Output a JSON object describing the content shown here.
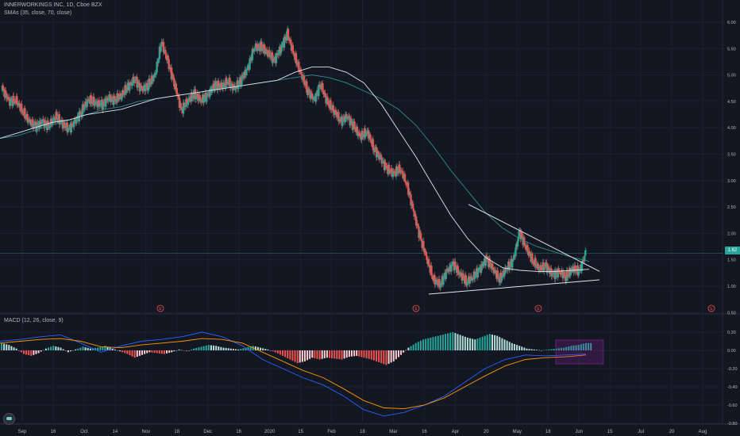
{
  "header": {
    "title": "INNERWORKINGS INC, 1D, Cboe BZX",
    "indicator": "SMAs (35, close, 70, close)"
  },
  "macd": {
    "label": "MACD (12, 26, close, 9)"
  },
  "last_price_label": "1.62",
  "event_marker": "E",
  "colors": {
    "background": "#131722",
    "up": "#26a69a",
    "down": "#ef5350",
    "sma35": "#e0e3eb",
    "sma70": "#2f8f8a",
    "macd_line": "#2962ff",
    "signal_line": "#ff9800",
    "highlight": "#9c27b0"
  },
  "chart_data": [
    {
      "type": "candlestick",
      "title": "INNERWORKINGS INC, 1D, Cboe BZX",
      "x_tick_labels": [
        "Sep",
        "16",
        "Oct",
        "14",
        "Nov",
        "18",
        "Dec",
        "16",
        "2020",
        "15",
        "Feb",
        "18",
        "Mar",
        "16",
        "Apr",
        "20",
        "May",
        "18",
        "Jun",
        "15",
        "Jul",
        "20",
        "Aug"
      ],
      "y_tick_labels": [
        "6.00",
        "5.50",
        "5.00",
        "4.50",
        "4.00",
        "3.50",
        "3.00",
        "2.50",
        "2.00",
        "1.50",
        "1.00",
        "0.50"
      ],
      "ylim": [
        0.5,
        6.0
      ],
      "last_price": 1.62,
      "price_path": [
        [
          4.7,
          4.8
        ],
        [
          4.45,
          4.55
        ],
        [
          4.5,
          4.55
        ],
        [
          4.3,
          4.35
        ],
        [
          4.1,
          4.15
        ],
        [
          4.0,
          4.05
        ],
        [
          4.1,
          4.15
        ],
        [
          4.0,
          4.05
        ],
        [
          4.2,
          4.25
        ],
        [
          4.05,
          4.1
        ],
        [
          3.95,
          4.0
        ],
        [
          4.1,
          4.15
        ],
        [
          4.3,
          4.35
        ],
        [
          4.5,
          4.55
        ],
        [
          4.45,
          4.5
        ],
        [
          4.4,
          4.45
        ],
        [
          4.55,
          4.6
        ],
        [
          4.5,
          4.55
        ],
        [
          4.6,
          4.65
        ],
        [
          4.75,
          4.8
        ],
        [
          4.9,
          4.95
        ],
        [
          4.7,
          4.75
        ],
        [
          4.8,
          4.85
        ],
        [
          4.95,
          5.0
        ],
        [
          5.6,
          5.65
        ],
        [
          5.2,
          5.25
        ],
        [
          4.8,
          4.85
        ],
        [
          4.3,
          4.35
        ],
        [
          4.5,
          4.55
        ],
        [
          4.6,
          4.65
        ],
        [
          4.5,
          4.55
        ],
        [
          4.6,
          4.65
        ],
        [
          4.8,
          4.85
        ],
        [
          4.75,
          4.8
        ],
        [
          4.85,
          4.9
        ],
        [
          4.7,
          4.75
        ],
        [
          4.9,
          4.95
        ],
        [
          5.1,
          5.15
        ],
        [
          5.5,
          5.55
        ],
        [
          5.5,
          5.55
        ],
        [
          5.4,
          5.45
        ],
        [
          5.25,
          5.3
        ],
        [
          5.5,
          5.55
        ],
        [
          5.75,
          5.8
        ],
        [
          5.35,
          5.4
        ],
        [
          5.0,
          5.05
        ],
        [
          4.7,
          4.75
        ],
        [
          4.5,
          4.55
        ],
        [
          4.8,
          4.85
        ],
        [
          4.45,
          4.5
        ],
        [
          4.3,
          4.35
        ],
        [
          4.1,
          4.15
        ],
        [
          4.2,
          4.25
        ],
        [
          4.0,
          4.05
        ],
        [
          3.8,
          3.85
        ],
        [
          3.9,
          3.95
        ],
        [
          3.6,
          3.65
        ],
        [
          3.4,
          3.45
        ],
        [
          3.2,
          3.25
        ],
        [
          3.1,
          3.15
        ],
        [
          3.2,
          3.25
        ],
        [
          2.9,
          2.95
        ],
        [
          2.4,
          2.45
        ],
        [
          1.9,
          1.95
        ],
        [
          1.5,
          1.55
        ],
        [
          1.1,
          1.15
        ],
        [
          1.0,
          1.05
        ],
        [
          1.25,
          1.3
        ],
        [
          1.4,
          1.45
        ],
        [
          1.2,
          1.25
        ],
        [
          1.05,
          1.1
        ],
        [
          1.15,
          1.2
        ],
        [
          1.3,
          1.35
        ],
        [
          1.5,
          1.55
        ],
        [
          1.3,
          1.35
        ],
        [
          1.1,
          1.15
        ],
        [
          1.3,
          1.35
        ],
        [
          1.45,
          1.5
        ],
        [
          2.0,
          2.05
        ],
        [
          1.7,
          1.75
        ],
        [
          1.45,
          1.5
        ],
        [
          1.3,
          1.35
        ],
        [
          1.35,
          1.4
        ],
        [
          1.2,
          1.25
        ],
        [
          1.25,
          1.3
        ],
        [
          1.15,
          1.2
        ],
        [
          1.3,
          1.35
        ],
        [
          1.25,
          1.3
        ],
        [
          1.62,
          1.65
        ]
      ],
      "sma35": [
        3.8,
        3.9,
        4.0,
        4.1,
        4.15,
        4.25,
        4.3,
        4.35,
        4.45,
        4.55,
        4.6,
        4.65,
        4.7,
        4.75,
        4.8,
        4.85,
        4.9,
        5.05,
        5.15,
        5.15,
        5.05,
        4.85,
        4.45,
        3.95,
        3.45,
        2.9,
        2.35,
        1.9,
        1.55,
        1.35,
        1.3,
        1.28,
        1.28,
        1.3,
        1.32
      ],
      "sma70": [
        3.8,
        3.85,
        3.95,
        4.05,
        4.15,
        4.25,
        4.35,
        4.4,
        4.5,
        4.55,
        4.6,
        4.65,
        4.7,
        4.75,
        4.8,
        4.85,
        4.9,
        4.95,
        5.0,
        4.95,
        4.85,
        4.7,
        4.55,
        4.35,
        4.05,
        3.65,
        3.2,
        2.8,
        2.4,
        2.1,
        1.9,
        1.75,
        1.65,
        1.55,
        1.47
      ],
      "trendlines": [
        {
          "from": [
            "Apr",
            2.55
          ],
          "to": [
            "Jun",
            1.28
          ]
        },
        {
          "from": [
            "Mar",
            0.85
          ],
          "to": [
            "Jun",
            1.12
          ]
        }
      ],
      "earnings_markers": [
        "Nov",
        "Mar",
        "May",
        "Aug"
      ]
    },
    {
      "type": "macd",
      "title": "MACD (12, 26, close, 9)",
      "y_tick_labels": [
        "0.20",
        "0.00",
        "-0.20",
        "-0.40",
        "-0.60",
        "-0.80"
      ],
      "ylim": [
        -0.85,
        0.25
      ],
      "histogram": [
        0.08,
        0.06,
        0.02,
        -0.04,
        -0.06,
        -0.03,
        0.02,
        0.05,
        0.03,
        -0.02,
        0.01,
        0.04,
        0.02,
        0.03,
        0.05,
        0.02,
        -0.01,
        -0.04,
        -0.08,
        -0.05,
        -0.02,
        -0.03,
        -0.04,
        -0.02,
        0.01,
        -0.01,
        0.02,
        0.04,
        0.06,
        0.05,
        0.03,
        0.02,
        0.01,
        0.03,
        0.05,
        0.03,
        0.01,
        -0.02,
        -0.06,
        -0.1,
        -0.14,
        -0.12,
        -0.08,
        -0.1,
        -0.08,
        -0.09,
        -0.1,
        -0.07,
        -0.06,
        -0.08,
        -0.1,
        -0.13,
        -0.16,
        -0.12,
        -0.05,
        0.03,
        0.08,
        0.12,
        0.14,
        0.16,
        0.18,
        0.2,
        0.17,
        0.14,
        0.12,
        0.15,
        0.18,
        0.16,
        0.12,
        0.08,
        0.05,
        0.02,
        0.01,
        0.0,
        0.01,
        0.02,
        0.03,
        0.05,
        0.06,
        0.08
      ],
      "macd_line": [
        0.1,
        0.12,
        0.15,
        0.17,
        0.08,
        -0.02,
        0.05,
        0.1,
        0.12,
        0.15,
        0.2,
        0.15,
        0.05,
        -0.1,
        -0.2,
        -0.3,
        -0.38,
        -0.5,
        -0.65,
        -0.72,
        -0.68,
        -0.6,
        -0.5,
        -0.35,
        -0.2,
        -0.1,
        -0.05,
        -0.06,
        -0.05,
        -0.04
      ],
      "signal_line": [
        0.08,
        0.1,
        0.12,
        0.13,
        0.1,
        0.04,
        0.03,
        0.06,
        0.08,
        0.1,
        0.13,
        0.12,
        0.08,
        -0.02,
        -0.12,
        -0.22,
        -0.3,
        -0.42,
        -0.55,
        -0.63,
        -0.64,
        -0.6,
        -0.52,
        -0.4,
        -0.28,
        -0.17,
        -0.1,
        -0.08,
        -0.07,
        -0.05
      ]
    }
  ]
}
